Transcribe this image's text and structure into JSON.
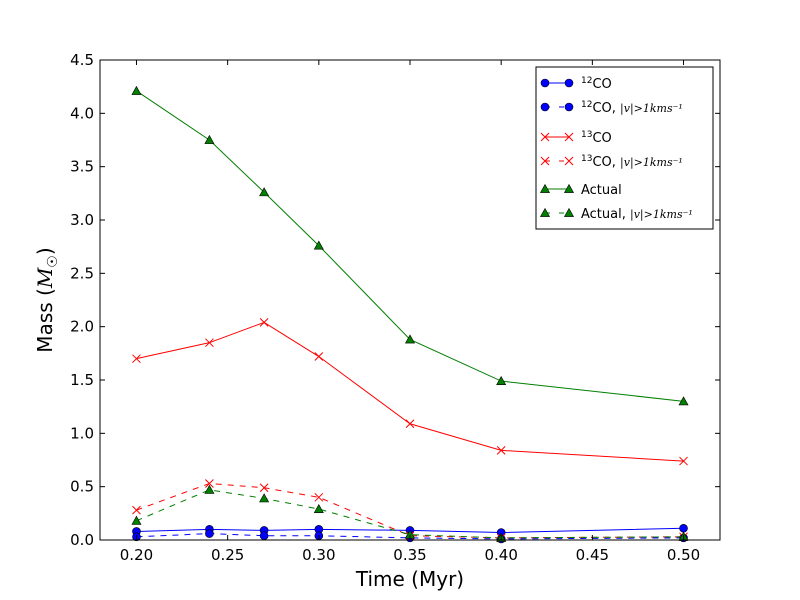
{
  "chart_data": {
    "type": "line",
    "title": "",
    "xlabel": "Time (Myr)",
    "ylabel": "Mass (",
    "ylabel_math": "M",
    "ylabel_sub": "☉",
    "ylabel_close": ")",
    "xlim": [
      0.18,
      0.52
    ],
    "ylim": [
      0.0,
      4.5
    ],
    "xticks": [
      0.2,
      0.25,
      0.3,
      0.35,
      0.4,
      0.45,
      0.5
    ],
    "xtick_labels": [
      "0.20",
      "0.25",
      "0.30",
      "0.35",
      "0.40",
      "0.45",
      "0.50"
    ],
    "yticks": [
      0.0,
      0.5,
      1.0,
      1.5,
      2.0,
      2.5,
      3.0,
      3.5,
      4.0,
      4.5
    ],
    "ytick_labels": [
      "0.0",
      "0.5",
      "1.0",
      "1.5",
      "2.0",
      "2.5",
      "3.0",
      "3.5",
      "4.0",
      "4.5"
    ],
    "grid": false,
    "legend_position": "top-right",
    "x": [
      0.2,
      0.24,
      0.27,
      0.3,
      0.35,
      0.4,
      0.5
    ],
    "series": [
      {
        "name": "12CO",
        "label_sup": "12",
        "label_base": "CO",
        "label_suffix": "",
        "color": "#0000ff",
        "marker": "circle",
        "dashed": false,
        "values": [
          0.08,
          0.1,
          0.09,
          0.1,
          0.09,
          0.07,
          0.11
        ]
      },
      {
        "name": "12CO, |v|>1kms-1",
        "label_sup": "12",
        "label_base": "CO, ",
        "label_suffix": "|v|>1kms⁻¹",
        "color": "#0000ff",
        "marker": "circle",
        "dashed": true,
        "values": [
          0.03,
          0.06,
          0.04,
          0.04,
          0.02,
          0.01,
          0.02
        ]
      },
      {
        "name": "13CO",
        "label_sup": "13",
        "label_base": "CO",
        "label_suffix": "",
        "color": "#ff0000",
        "marker": "x",
        "dashed": false,
        "values": [
          1.7,
          1.85,
          2.04,
          1.72,
          1.09,
          0.84,
          0.74
        ]
      },
      {
        "name": "13CO, |v|>1kms-1",
        "label_sup": "13",
        "label_base": "CO, ",
        "label_suffix": "|v|>1kms⁻¹",
        "color": "#ff0000",
        "marker": "x",
        "dashed": true,
        "values": [
          0.28,
          0.53,
          0.49,
          0.4,
          0.04,
          0.02,
          0.03
        ]
      },
      {
        "name": "Actual",
        "label_sup": "",
        "label_base": "Actual",
        "label_suffix": "",
        "color": "#007f00",
        "marker": "triangle",
        "dashed": false,
        "values": [
          4.21,
          3.75,
          3.26,
          2.76,
          1.88,
          1.49,
          1.3
        ]
      },
      {
        "name": "Actual, |v|>1kms-1",
        "label_sup": "",
        "label_base": "Actual, ",
        "label_suffix": "|v|>1kms⁻¹",
        "color": "#007f00",
        "marker": "triangle",
        "dashed": true,
        "values": [
          0.18,
          0.47,
          0.39,
          0.29,
          0.05,
          0.02,
          0.03
        ]
      }
    ]
  }
}
